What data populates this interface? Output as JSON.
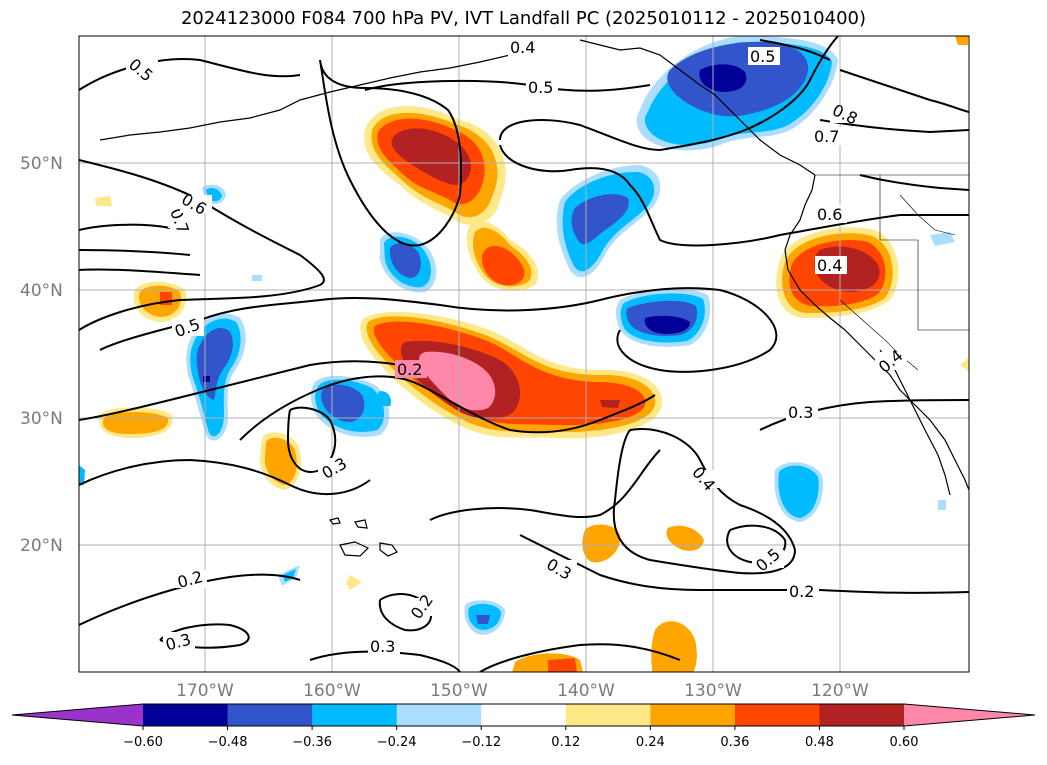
{
  "title": "2024123000 F084 700 hPa PV, IVT Landfall PC (2025010112 - 2025010400)",
  "map": {
    "lat_labels": [
      "50°N",
      "40°N",
      "30°N",
      "20°N"
    ],
    "lon_labels": [
      "170°W",
      "160°W",
      "150°W",
      "140°W",
      "130°W",
      "120°W"
    ],
    "contour_labels": [
      {
        "text": "0.4"
      },
      {
        "text": "0.5"
      },
      {
        "text": "0.5"
      },
      {
        "text": "0.5"
      },
      {
        "text": "0.8"
      },
      {
        "text": "0.7"
      },
      {
        "text": "0.6"
      },
      {
        "text": "0.7"
      },
      {
        "text": "0.6"
      },
      {
        "text": "0.4"
      },
      {
        "text": "0.5"
      },
      {
        "text": "0.2"
      },
      {
        "text": "0.4"
      },
      {
        "text": "0.3"
      },
      {
        "text": "0.3"
      },
      {
        "text": "0.4"
      },
      {
        "text": "0.3"
      },
      {
        "text": "0.5"
      },
      {
        "text": "0.2"
      },
      {
        "text": "0.2"
      },
      {
        "text": "0.2"
      },
      {
        "text": "0.3"
      },
      {
        "text": "0.3"
      }
    ]
  },
  "colorbar": {
    "ticks": [
      "-0.60",
      "-0.48",
      "-0.36",
      "-0.24",
      "-0.12",
      "0.12",
      "0.24",
      "0.36",
      "0.48",
      "0.60"
    ],
    "colors": [
      "#9933cc",
      "#000099",
      "#3355cc",
      "#00bbff",
      "#aaddff",
      "#ffffff",
      "#ffe888",
      "#ffa500",
      "#ff4500",
      "#b22222",
      "#ff88aa"
    ]
  },
  "colors": {
    "neg_low": "#aaddff",
    "neg_mid": "#00bbff",
    "neg_high": "#3355cc",
    "neg_max": "#000099",
    "pos_low": "#ffe888",
    "pos_mid": "#ffa500",
    "pos_high": "#ff4500",
    "pos_higher": "#b22222",
    "pos_max": "#ff88aa"
  }
}
